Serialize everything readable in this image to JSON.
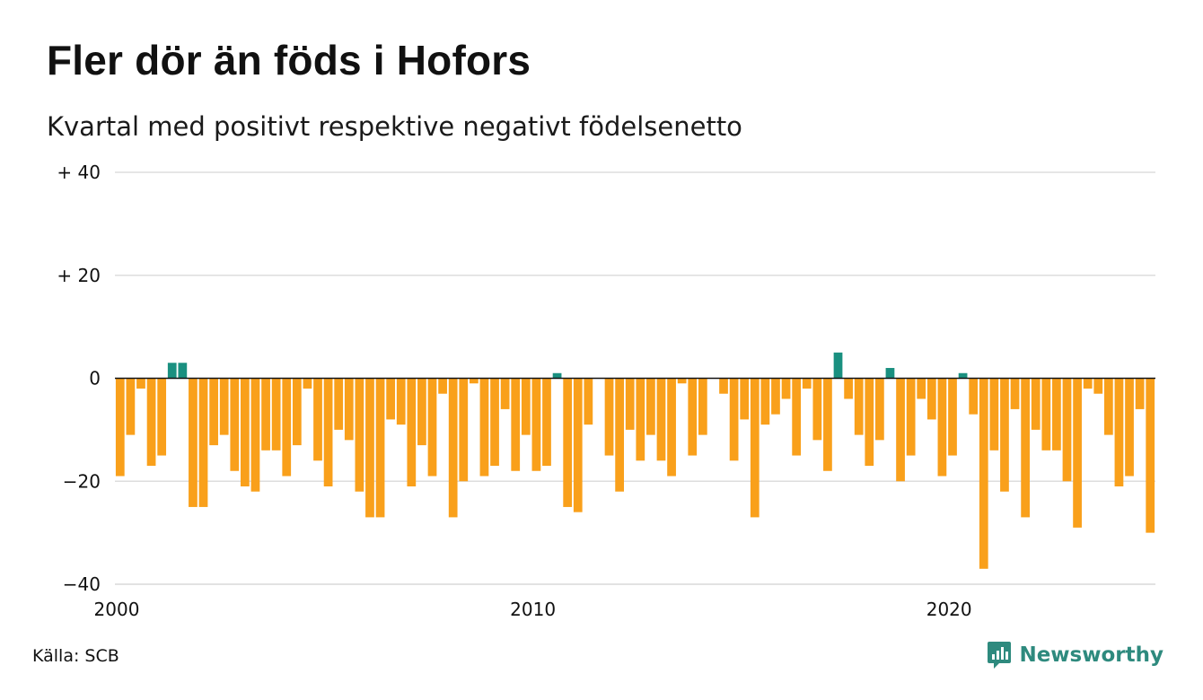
{
  "title": "Fler dör än föds i Hofors",
  "subtitle": "Kvartal med positivt respektive negativt födelsenetto",
  "source": "Källa: SCB",
  "brand": {
    "name": "Newsworthy",
    "icon": "newsworthy-logo-icon"
  },
  "colors": {
    "positive": "#1a9080",
    "negative": "#f9a01b",
    "grid": "#dddddd",
    "zero": "#111111",
    "brand": "#2e8a7e"
  },
  "chart_data": {
    "type": "bar",
    "x_unit": "quarter",
    "x_start": "2000 Q1",
    "ylim": [
      -40,
      40
    ],
    "yticks": [
      {
        "value": 40,
        "label": "+ 40"
      },
      {
        "value": 20,
        "label": "+ 20"
      },
      {
        "value": 0,
        "label": "0"
      },
      {
        "value": -20,
        "label": "−20"
      },
      {
        "value": -40,
        "label": "−40"
      }
    ],
    "xticks": [
      "2000",
      "2010",
      "2020"
    ],
    "grid": true,
    "values": [
      -19,
      -11,
      -2,
      -17,
      -15,
      3,
      3,
      -25,
      -25,
      -13,
      -11,
      -18,
      -21,
      -22,
      -14,
      -14,
      -19,
      -13,
      -2,
      -16,
      -21,
      -10,
      -12,
      -22,
      -27,
      -27,
      -8,
      -9,
      -21,
      -13,
      -19,
      -3,
      -27,
      -20,
      -1,
      -19,
      -17,
      -6,
      -18,
      -11,
      -18,
      -17,
      1,
      -25,
      -26,
      -9,
      0,
      -15,
      -22,
      -10,
      -16,
      -11,
      -16,
      -19,
      -1,
      -15,
      -11,
      0,
      -3,
      -16,
      -8,
      -27,
      -9,
      -7,
      -4,
      -15,
      -2,
      -12,
      -18,
      5,
      -4,
      -11,
      -17,
      -12,
      2,
      -20,
      -15,
      -4,
      -8,
      -19,
      -15,
      1,
      -7,
      -37,
      -14,
      -22,
      -6,
      -27,
      -10,
      -14,
      -14,
      -20,
      -29,
      -2,
      -3,
      -11,
      -21,
      -19,
      -6,
      -30
    ]
  }
}
